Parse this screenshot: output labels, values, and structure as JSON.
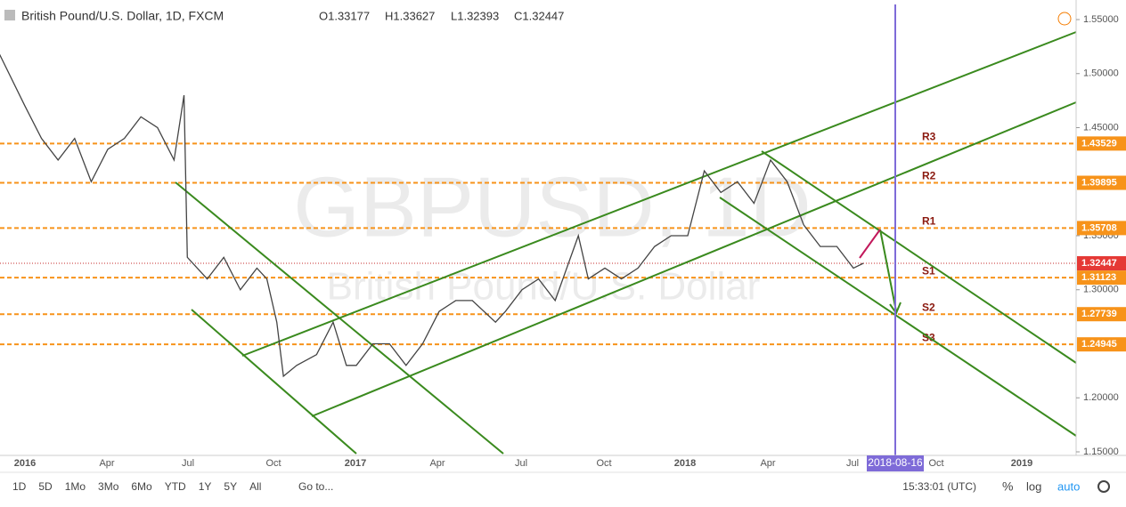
{
  "header": {
    "symbol": "British Pound/U.S. Dollar, 1D, FXCM",
    "open": "O1.33177",
    "high": "H1.33627",
    "low": "L1.32393",
    "close": "C1.32447"
  },
  "watermark": {
    "big": "GBPUSD, 1D",
    "small": "British Pound/U.S. Dollar"
  },
  "price_axis": {
    "ylim": [
      1.15,
      1.55
    ],
    "ticks": [
      {
        "value": 1.55,
        "label": "1.55000"
      },
      {
        "value": 1.5,
        "label": "1.50000"
      },
      {
        "value": 1.45,
        "label": "1.45000"
      },
      {
        "value": 1.35,
        "label": "1.35000"
      },
      {
        "value": 1.3,
        "label": "1.30000"
      },
      {
        "value": 1.2,
        "label": "1.20000"
      },
      {
        "value": 1.15,
        "label": "1.15000"
      }
    ],
    "last": 1.32447
  },
  "levels": [
    {
      "name": "R3",
      "value": 1.43529
    },
    {
      "name": "R2",
      "value": 1.39895
    },
    {
      "name": "R1",
      "value": 1.35708
    },
    {
      "name": "S1",
      "value": 1.31123
    },
    {
      "name": "S2",
      "value": 1.27739
    },
    {
      "name": "S3",
      "value": 1.24945
    }
  ],
  "time_axis": {
    "labels": [
      "2016",
      "Apr",
      "Jul",
      "Oct",
      "2017",
      "Apr",
      "Jul",
      "Oct",
      "2018",
      "Apr",
      "Jul",
      "Oct",
      "2019"
    ],
    "marker": "2018-08-16"
  },
  "price_series": {
    "t": [
      2015.92,
      2016.0,
      2016.05,
      2016.1,
      2016.15,
      2016.2,
      2016.25,
      2016.3,
      2016.35,
      2016.4,
      2016.45,
      2016.48,
      2016.49,
      2016.55,
      2016.6,
      2016.65,
      2016.7,
      2016.73,
      2016.76,
      2016.78,
      2016.82,
      2016.88,
      2016.93,
      2016.97,
      2017.0,
      2017.05,
      2017.1,
      2017.15,
      2017.2,
      2017.25,
      2017.3,
      2017.35,
      2017.42,
      2017.45,
      2017.5,
      2017.55,
      2017.6,
      2017.67,
      2017.7,
      2017.75,
      2017.8,
      2017.85,
      2017.9,
      2017.95,
      2018.0,
      2018.05,
      2018.1,
      2018.15,
      2018.2,
      2018.25,
      2018.3,
      2018.35,
      2018.4,
      2018.45,
      2018.5,
      2018.53
    ],
    "close": [
      1.52,
      1.47,
      1.44,
      1.42,
      1.44,
      1.4,
      1.43,
      1.44,
      1.46,
      1.45,
      1.42,
      1.48,
      1.33,
      1.31,
      1.33,
      1.3,
      1.32,
      1.31,
      1.27,
      1.22,
      1.23,
      1.24,
      1.27,
      1.23,
      1.23,
      1.25,
      1.25,
      1.23,
      1.25,
      1.28,
      1.29,
      1.29,
      1.27,
      1.28,
      1.3,
      1.31,
      1.29,
      1.35,
      1.31,
      1.32,
      1.31,
      1.32,
      1.34,
      1.35,
      1.35,
      1.41,
      1.39,
      1.4,
      1.38,
      1.42,
      1.4,
      1.36,
      1.34,
      1.34,
      1.32,
      1.32447
    ]
  },
  "toolbar": {
    "ranges": [
      "1D",
      "5D",
      "1Mo",
      "3Mo",
      "6Mo",
      "YTD",
      "1Y",
      "5Y",
      "All"
    ],
    "goto": "Go to...",
    "clock": "15:33:01 (UTC)",
    "percent": "%",
    "log": "log",
    "auto": "auto"
  }
}
